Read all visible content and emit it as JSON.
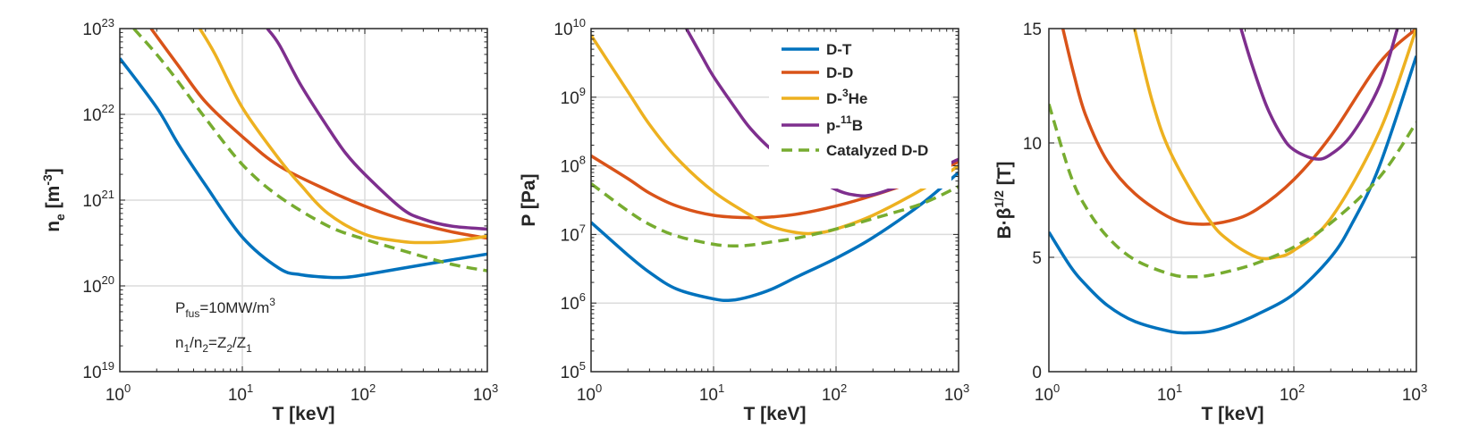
{
  "colors": {
    "D-T": "#0072BD",
    "D-D": "#D95319",
    "D-3He": "#EDB120",
    "p-11B": "#7E2F8E",
    "Catalyzed D-D": "#77AC30"
  },
  "legend": {
    "entries": [
      {
        "key": "D-T",
        "parts": [
          "D-T"
        ],
        "dashed": false
      },
      {
        "key": "D-D",
        "parts": [
          "D-D"
        ],
        "dashed": false
      },
      {
        "key": "D-3He",
        "parts": [
          "D-",
          "3",
          "He"
        ],
        "dashed": false
      },
      {
        "key": "p-11B",
        "parts": [
          "p-",
          "11",
          "B"
        ],
        "dashed": false
      },
      {
        "key": "Catalyzed D-D",
        "parts": [
          "Catalyzed D-D"
        ],
        "dashed": true
      }
    ]
  },
  "annotation": {
    "line1": {
      "a": "P",
      "a_sub": "fus",
      "b": "=10MW/m",
      "b_sup": "3"
    },
    "line2": {
      "a": "n",
      "a_sub": "1",
      "b": "/n",
      "b_sub": "2",
      "c": "=Z",
      "c_sub": "2",
      "d": "/Z",
      "d_sub": "1"
    }
  },
  "chart_data": [
    {
      "type": "line",
      "xscale": "log",
      "yscale": "log",
      "xlim": [
        1,
        1000
      ],
      "ylim": [
        1e+19,
        1e+23
      ],
      "grid": true,
      "xlabel": "T [keV]",
      "ylabel": {
        "base": "n",
        "sub": "e",
        "rest": " [m",
        "sup": "-3",
        "end": "]"
      },
      "x_ticks": [
        {
          "base": "10",
          "exp": "0"
        },
        {
          "base": "10",
          "exp": "1"
        },
        {
          "base": "10",
          "exp": "2"
        },
        {
          "base": "10",
          "exp": "3"
        }
      ],
      "y_ticks": [
        {
          "base": "10",
          "exp": "19"
        },
        {
          "base": "10",
          "exp": "20"
        },
        {
          "base": "10",
          "exp": "21"
        },
        {
          "base": "10",
          "exp": "22"
        },
        {
          "base": "10",
          "exp": "23"
        }
      ],
      "series": [
        {
          "key": "D-T",
          "x": [
            1,
            2,
            3,
            5,
            10,
            20,
            30,
            50,
            70,
            100,
            200,
            500,
            1000
          ],
          "y": [
            4.5e+22,
            1.2e+22,
            4.5e+21,
            1.5e+21,
            3.7e+20,
            1.6e+20,
            1.35e+20,
            1.26e+20,
            1.26e+20,
            1.35e+20,
            1.6e+20,
            2e+20,
            2.35e+20
          ]
        },
        {
          "key": "D-D",
          "x": [
            1.8,
            3,
            5,
            10,
            20,
            50,
            100,
            200,
            500,
            1000
          ],
          "y": [
            1e+23,
            3.7e+22,
            1.4e+22,
            5.5e+21,
            2.5e+21,
            1.3e+21,
            8.5e+20,
            6e+20,
            4.3e+20,
            3.6e+20
          ]
        },
        {
          "key": "D-3He",
          "x": [
            4.5,
            6,
            10,
            20,
            30,
            50,
            100,
            200,
            300,
            500,
            1000
          ],
          "y": [
            1e+23,
            5e+22,
            1.2e+22,
            3e+21,
            1.5e+21,
            7e+20,
            4e+20,
            3.3e+20,
            3.2e+20,
            3.3e+20,
            3.8e+20
          ]
        },
        {
          "key": "p-11B",
          "x": [
            16,
            20,
            30,
            50,
            70,
            100,
            200,
            300,
            500,
            1000
          ],
          "y": [
            1e+23,
            6.5e+22,
            2.2e+22,
            7e+21,
            3.5e+21,
            2e+21,
            8e+20,
            6e+20,
            5e+20,
            4.6e+20
          ]
        },
        {
          "key": "Catalyzed D-D",
          "x": [
            1.3,
            2,
            3,
            5,
            10,
            20,
            50,
            100,
            200,
            500,
            1000
          ],
          "y": [
            1e+23,
            5e+22,
            2.4e+22,
            9e+21,
            2.6e+21,
            1.1e+21,
            5e+20,
            3.5e+20,
            2.6e+20,
            1.8e+20,
            1.5e+20
          ]
        }
      ]
    },
    {
      "type": "line",
      "xscale": "log",
      "yscale": "log",
      "xlim": [
        1,
        1000
      ],
      "ylim": [
        100000.0,
        10000000000.0
      ],
      "grid": true,
      "xlabel": "T [keV]",
      "ylabel": {
        "base": "P [Pa]"
      },
      "x_ticks": [
        {
          "base": "10",
          "exp": "0"
        },
        {
          "base": "10",
          "exp": "1"
        },
        {
          "base": "10",
          "exp": "2"
        },
        {
          "base": "10",
          "exp": "3"
        }
      ],
      "y_ticks": [
        {
          "base": "10",
          "exp": "5"
        },
        {
          "base": "10",
          "exp": "6"
        },
        {
          "base": "10",
          "exp": "7"
        },
        {
          "base": "10",
          "exp": "8"
        },
        {
          "base": "10",
          "exp": "9"
        },
        {
          "base": "10",
          "exp": "10"
        }
      ],
      "series": [
        {
          "key": "D-T",
          "x": [
            1,
            2,
            3,
            5,
            10,
            14,
            20,
            30,
            50,
            100,
            200,
            500,
            1000
          ],
          "y": [
            15000000.0,
            5000000.0,
            2800000.0,
            1600000.0,
            1150000.0,
            1100000.0,
            1250000.0,
            1600000.0,
            2500000.0,
            4500000.0,
            9000000.0,
            28000000.0,
            80000000.0
          ]
        },
        {
          "key": "D-D",
          "x": [
            1,
            2,
            3,
            5,
            10,
            20,
            30,
            50,
            100,
            200,
            500,
            1000
          ],
          "y": [
            140000000.0,
            65000000.0,
            40000000.0,
            26000000.0,
            19000000.0,
            17500000.0,
            18000000.0,
            20000000.0,
            26000000.0,
            37000000.0,
            65000000.0,
            115000000.0
          ]
        },
        {
          "key": "D-3He",
          "x": [
            1,
            2,
            3,
            5,
            10,
            20,
            30,
            50,
            70,
            100,
            200,
            500,
            1000
          ],
          "y": [
            8000000000.0,
            1200000000.0,
            400000000.0,
            130000000.0,
            42000000.0,
            19000000.0,
            13000000.0,
            10500000.0,
            10500000.0,
            12000000.0,
            19000000.0,
            45000000.0,
            100000000.0
          ]
        },
        {
          "key": "p-11B",
          "x": [
            6,
            8,
            10,
            15,
            20,
            30,
            50,
            100,
            150,
            200,
            300,
            500,
            1000
          ],
          "y": [
            10000000000.0,
            4000000000.0,
            2000000000.0,
            700000000.0,
            350000000.0,
            170000000.0,
            90000000.0,
            45000000.0,
            37000000.0,
            38000000.0,
            48000000.0,
            70000000.0,
            125000000.0
          ]
        },
        {
          "key": "Catalyzed D-D",
          "x": [
            1,
            2,
            3,
            5,
            10,
            15,
            20,
            30,
            50,
            100,
            200,
            500,
            1000
          ],
          "y": [
            55000000.0,
            22000000.0,
            14000000.0,
            9500000.0,
            7200000.0,
            6800000.0,
            7000000.0,
            7800000.0,
            9000000.0,
            12000000.0,
            17000000.0,
            28000000.0,
            50000000.0
          ]
        }
      ]
    },
    {
      "type": "line",
      "xscale": "log",
      "yscale": "linear",
      "xlim": [
        1,
        1000
      ],
      "ylim": [
        0,
        15
      ],
      "grid": true,
      "xlabel": "T [keV]",
      "ylabel": {
        "base": "B·β",
        "sup": "1/2",
        "end": " [T]"
      },
      "x_ticks": [
        {
          "base": "10",
          "exp": "0"
        },
        {
          "base": "10",
          "exp": "1"
        },
        {
          "base": "10",
          "exp": "2"
        },
        {
          "base": "10",
          "exp": "3"
        }
      ],
      "y_ticks": [
        {
          "base": "0",
          "value": 0
        },
        {
          "base": "5",
          "value": 5
        },
        {
          "base": "10",
          "value": 10
        },
        {
          "base": "15",
          "value": 15
        }
      ],
      "series": [
        {
          "key": "D-T",
          "x": [
            1,
            1.5,
            2,
            3,
            5,
            10,
            14,
            20,
            30,
            50,
            100,
            200,
            300,
            500,
            1000
          ],
          "y": [
            6.1,
            4.6,
            3.8,
            2.9,
            2.2,
            1.75,
            1.7,
            1.75,
            2.0,
            2.5,
            3.4,
            5,
            6.5,
            9,
            13.8
          ]
        },
        {
          "key": "D-D",
          "x": [
            1.3,
            1.6,
            2,
            3,
            5,
            10,
            17,
            30,
            50,
            100,
            200,
            500,
            1000
          ],
          "y": [
            15,
            13,
            11.2,
            9.2,
            7.8,
            6.7,
            6.45,
            6.6,
            7.1,
            8.4,
            10.3,
            13.5,
            15
          ]
        },
        {
          "key": "D-3He",
          "x": [
            5,
            7,
            10,
            20,
            30,
            50,
            70,
            100,
            200,
            500,
            1000
          ],
          "y": [
            15,
            11.8,
            9.5,
            6.7,
            5.7,
            5.0,
            5.0,
            5.3,
            6.7,
            10.5,
            15
          ]
        },
        {
          "key": "p-11B",
          "x": [
            37,
            45,
            60,
            80,
            100,
            150,
            200,
            300,
            500,
            700
          ],
          "y": [
            15,
            13.5,
            11.6,
            10.3,
            9.7,
            9.3,
            9.5,
            10.4,
            12.5,
            15
          ]
        },
        {
          "key": "Catalyzed D-D",
          "x": [
            1,
            1.5,
            2,
            3,
            5,
            10,
            15,
            20,
            30,
            50,
            100,
            200,
            500,
            1000
          ],
          "y": [
            11.7,
            8.6,
            7.2,
            5.9,
            4.9,
            4.25,
            4.15,
            4.2,
            4.4,
            4.75,
            5.45,
            6.5,
            8.5,
            10.9
          ]
        }
      ]
    }
  ]
}
